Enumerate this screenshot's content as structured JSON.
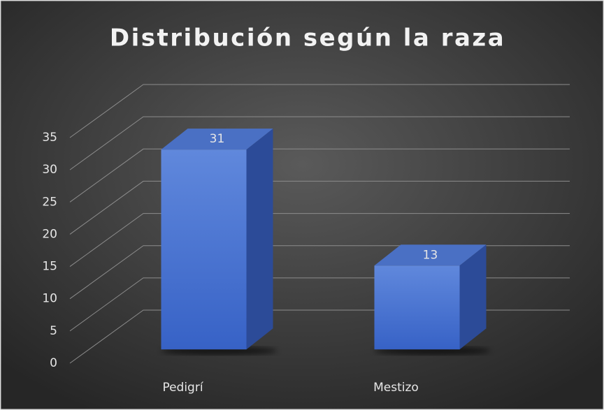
{
  "chart_data": {
    "type": "bar3d",
    "title": "Distribución según la raza",
    "categories": [
      "Pedigrí",
      "Mestizo"
    ],
    "values": [
      31,
      13
    ],
    "color": "#4472c4",
    "ylim": [
      0,
      35
    ],
    "yticks": [
      0,
      5,
      10,
      15,
      20,
      25,
      30,
      35
    ],
    "grid": true
  }
}
